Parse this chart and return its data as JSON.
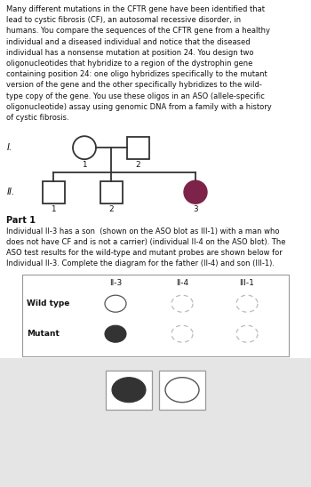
{
  "text_lines": [
    "Many different mutations in the CFTR gene have been identified that",
    "lead to cystic fibrosis (CF), an autosomal recessive disorder, in",
    "humans. You compare the sequences of the CFTR gene from a healthy",
    "individual and a diseased individual and notice that the diseased",
    "individual has a nonsense mutation at position 24. You design two",
    "oligonucleotides that hybridize to a region of the dystrophin gene",
    "containing position 24: one oligo hybridizes specifically to the mutant",
    "version of the gene and the other specifically hybridizes to the wild-",
    "type copy of the gene. You use these oligos in an ASO (allele-specific",
    "oligonucleotide) assay using genomic DNA from a family with a history",
    "of cystic fibrosis."
  ],
  "part1_lines": [
    "Individual II-3 has a son  (shown on the ASO blot as III-1) with a man who",
    "does not have CF and is not a carrier) (individual II-4 on the ASO blot). The",
    "ASO test results for the wild-type and mutant probes are shown below for",
    "Individual II-3. Complete the diagram for the father (II-4) and son (III-1)."
  ],
  "bg_color": "#ffffff",
  "bottom_bg": "#e5e5e5",
  "purple_fill": "#7d2248",
  "dark_fill": "#333333",
  "text_color": "#111111",
  "line_color": "#333333",
  "gray_dash": "#bbbbbb",
  "table_border": "#999999",
  "box_border": "#999999"
}
